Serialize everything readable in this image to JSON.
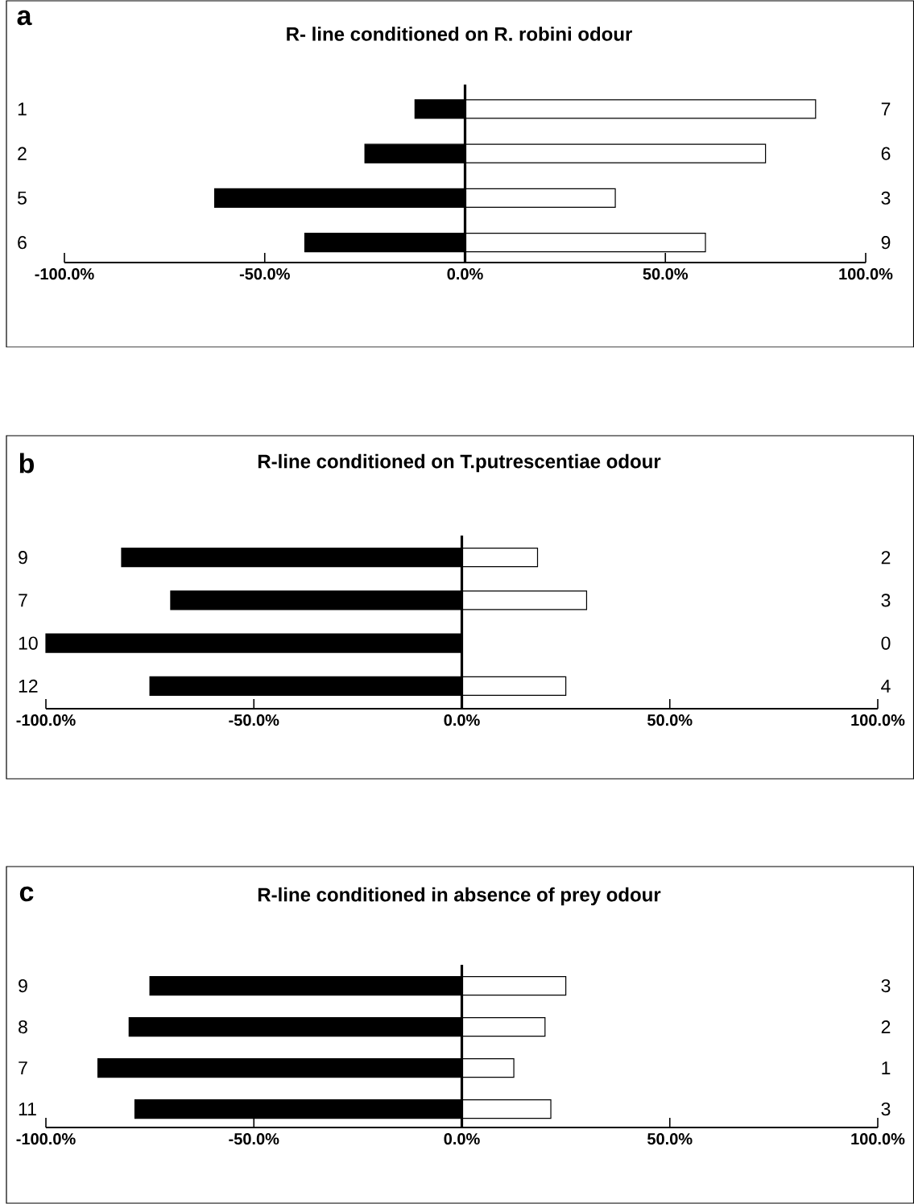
{
  "chart_data": [
    {
      "type": "bar",
      "orientation": "horizontal",
      "stacked": true,
      "title": "R- line conditioned on R. robini odour",
      "annotations": [
        "a",
        "7",
        "6",
        "3",
        "9"
      ],
      "categories": [
        "1",
        "2",
        "5",
        "6"
      ],
      "series": [
        {
          "color": "#000000",
          "values": [
            -12.5,
            -25,
            -62.5,
            -40
          ]
        },
        {
          "color": "#ffffff",
          "values": [
            87.5,
            75,
            37.5,
            60
          ]
        }
      ],
      "xlim": [
        -100,
        100
      ],
      "xticks": [
        {
          "value": -100,
          "label": "-100.0%"
        },
        {
          "value": -50,
          "label": "-50.0%"
        },
        {
          "value": 0,
          "label": "0.0%"
        },
        {
          "value": 50,
          "label": "50.0%"
        },
        {
          "value": 100,
          "label": "100.0%"
        }
      ],
      "ref_lines": [
        {
          "axis": "x",
          "value": 0,
          "color": "#000000"
        }
      ]
    },
    {
      "type": "bar",
      "orientation": "horizontal",
      "stacked": true,
      "title": "R-line conditioned on T.putrescentiae odour",
      "annotations": [
        "b",
        "2",
        "3",
        "0",
        "4"
      ],
      "categories": [
        "9",
        "7",
        "10",
        "12"
      ],
      "series": [
        {
          "color": "#000000",
          "values": [
            -81.8,
            -70,
            -100,
            -75
          ]
        },
        {
          "color": "#ffffff",
          "values": [
            18.2,
            30,
            0,
            25
          ]
        }
      ],
      "xlim": [
        -100,
        100
      ],
      "xticks": [
        {
          "value": -100,
          "label": "-100.0%"
        },
        {
          "value": -50,
          "label": "-50.0%"
        },
        {
          "value": 0,
          "label": "0.0%"
        },
        {
          "value": 50,
          "label": "50.0%"
        },
        {
          "value": 100,
          "label": "100.0%"
        }
      ],
      "ref_lines": [
        {
          "axis": "x",
          "value": 0,
          "color": "#000000"
        }
      ]
    },
    {
      "type": "bar",
      "orientation": "horizontal",
      "stacked": true,
      "title": "R-line conditioned in absence of prey odour",
      "annotations": [
        "c",
        "3",
        "2",
        "1",
        "3"
      ],
      "categories": [
        "9",
        "8",
        "7",
        "11"
      ],
      "series": [
        {
          "color": "#000000",
          "values": [
            -75,
            -80,
            -87.5,
            -78.6
          ]
        },
        {
          "color": "#ffffff",
          "values": [
            25,
            20,
            12.5,
            21.4
          ]
        }
      ],
      "xlim": [
        -100,
        100
      ],
      "xticks": [
        {
          "value": -100,
          "label": "-100.0%"
        },
        {
          "value": -50,
          "label": "-50.0%"
        },
        {
          "value": 0,
          "label": "0.0%"
        },
        {
          "value": 50,
          "label": "50.0%"
        },
        {
          "value": 100,
          "label": "100.0%"
        }
      ],
      "ref_lines": [
        {
          "axis": "x",
          "value": 0,
          "color": "#000000"
        }
      ]
    }
  ]
}
